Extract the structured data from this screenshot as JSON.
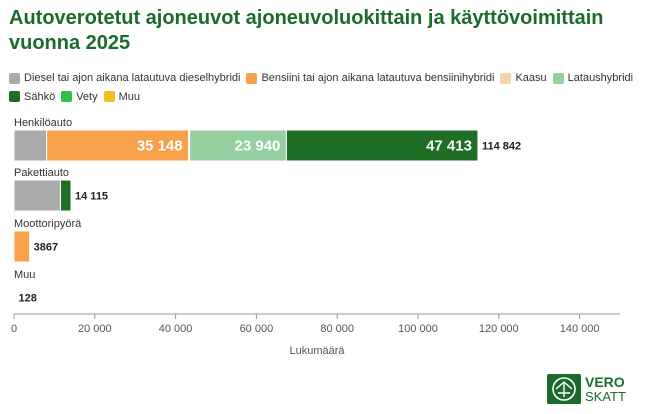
{
  "chart_data": {
    "type": "bar",
    "orientation": "horizontal",
    "stacked": true,
    "title": "Autoverotetut ajoneuvot ajoneuvoluokittain ja käyttövoimittain vuonna 2025",
    "xlabel": "Lukumäärä",
    "ylabel": "",
    "xlim": [
      0,
      150000
    ],
    "xticks": [
      0,
      20000,
      40000,
      60000,
      80000,
      100000,
      120000,
      140000
    ],
    "xtick_labels": [
      "0",
      "20 000",
      "40 000",
      "60 000",
      "80 000",
      "100 000",
      "120 000",
      "140 000"
    ],
    "grid": false,
    "legend_position": "top",
    "categories": [
      "Henkilöauto",
      "Pakettiauto",
      "Moottoripyörä",
      "Muu"
    ],
    "totals": [
      114842,
      14115,
      3867,
      128
    ],
    "total_labels": [
      "114 842",
      "14 115",
      "3867",
      "128"
    ],
    "series": [
      {
        "name": "Diesel tai ajon aikana latautuva dieselhybridi",
        "color": "#aaaaaa",
        "values": [
          8074,
          11500,
          0,
          0
        ],
        "labels": [
          "",
          "",
          "",
          ""
        ]
      },
      {
        "name": "Bensiini tai ajon aikana latautuva bensiinihybridi",
        "color": "#f7a24a",
        "values": [
          35148,
          0,
          3867,
          0
        ],
        "labels": [
          "35 148",
          "",
          "",
          ""
        ]
      },
      {
        "name": "Kaasu",
        "color": "#f5d3a8",
        "values": [
          267,
          0,
          0,
          0
        ],
        "labels": [
          "",
          "",
          "",
          ""
        ]
      },
      {
        "name": "Lataushybridi",
        "color": "#96cfa0",
        "values": [
          23940,
          0,
          0,
          0
        ],
        "labels": [
          "23 940",
          "",
          "",
          ""
        ]
      },
      {
        "name": "Sähkö",
        "color": "#1e6e26",
        "values": [
          47413,
          2615,
          0,
          0
        ],
        "labels": [
          "47 413",
          "",
          "",
          ""
        ]
      },
      {
        "name": "Vety",
        "color": "#2fbf4a",
        "values": [
          0,
          0,
          0,
          0
        ],
        "labels": [
          "",
          "",
          "",
          ""
        ]
      },
      {
        "name": "Muu",
        "color": "#f0c020",
        "values": [
          0,
          0,
          0,
          128
        ],
        "labels": [
          "",
          "",
          "",
          ""
        ]
      }
    ]
  },
  "logo": {
    "line1": "VERO",
    "line2": "SKATT",
    "color": "#1d6b2c"
  }
}
